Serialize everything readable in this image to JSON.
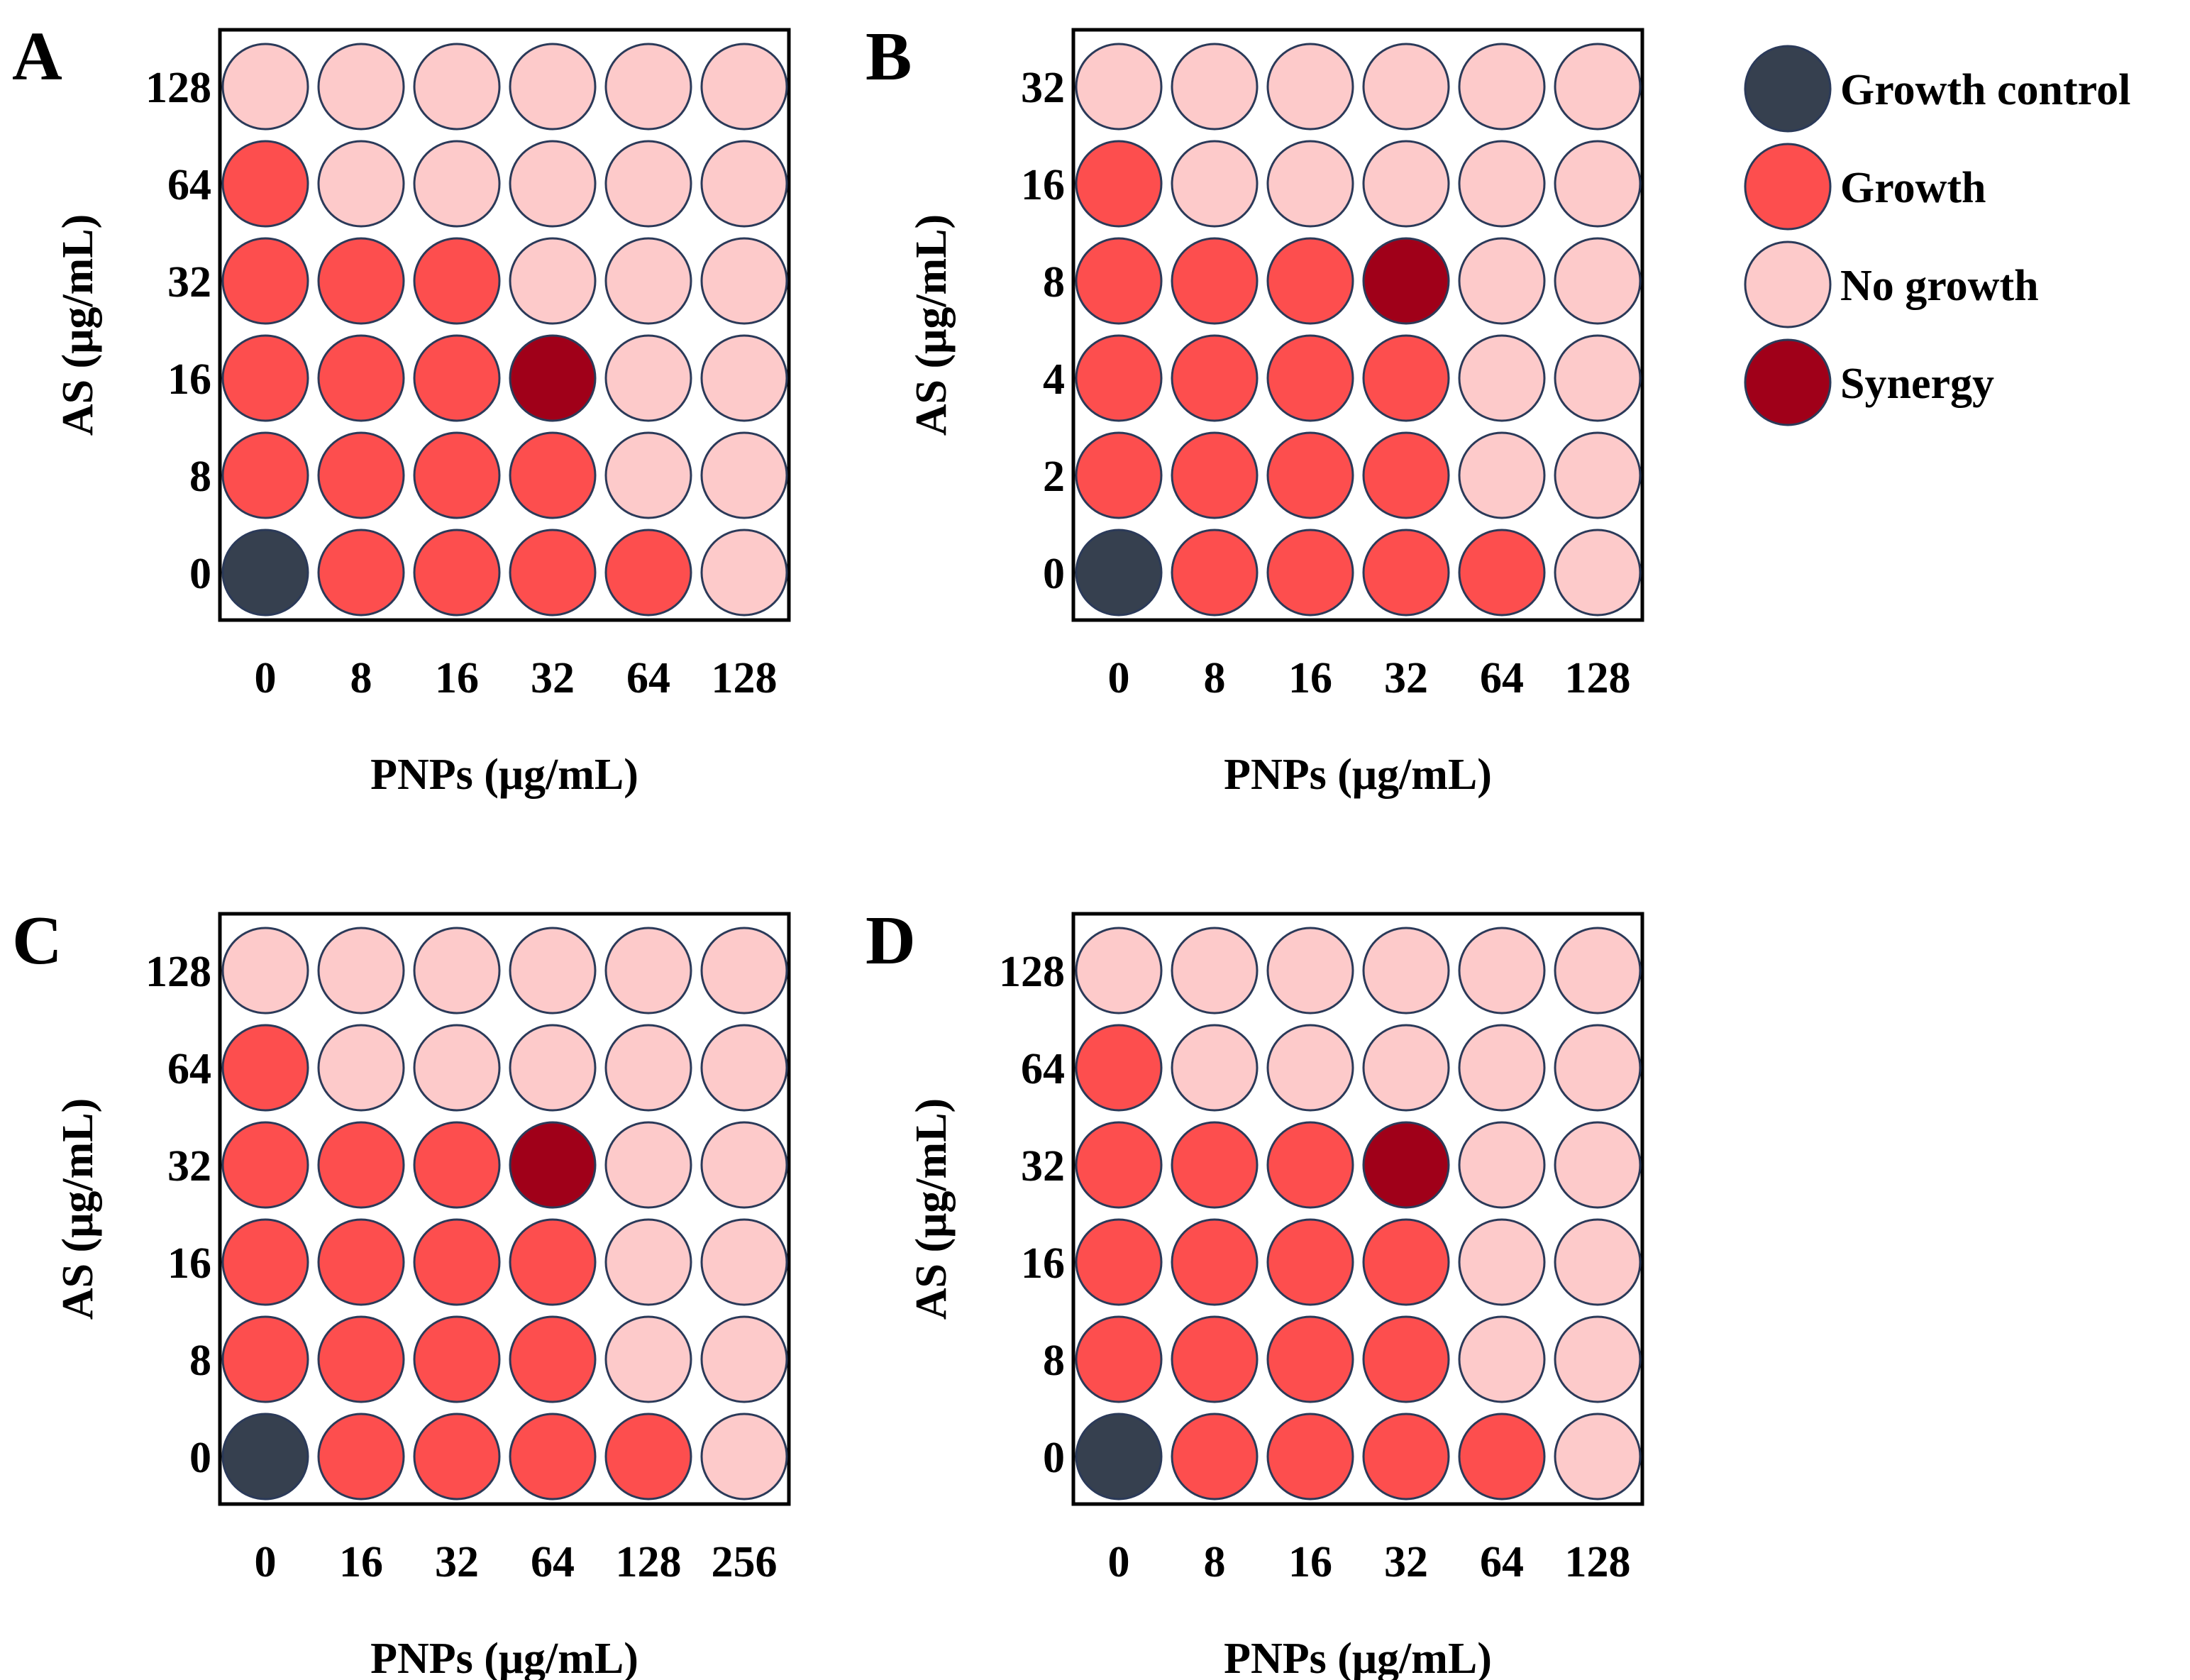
{
  "colors": {
    "growth_control": "#36404f",
    "growth": "#fd4e4e",
    "no_growth": "#fdcaca",
    "synergy": "#a00019",
    "well_outline": "#2b3a59"
  },
  "legend": [
    {
      "key": "growth_control",
      "label": "Growth control"
    },
    {
      "key": "growth",
      "label": "Growth"
    },
    {
      "key": "no_growth",
      "label": "No growth"
    },
    {
      "key": "synergy",
      "label": "Synergy"
    }
  ],
  "chart_data": [
    {
      "type": "heatmap",
      "panel": "A",
      "xlabel": "PNPs (μg/mL)",
      "ylabel": "AS (μg/mL)",
      "x_ticks": [
        "0",
        "8",
        "16",
        "32",
        "64",
        "128"
      ],
      "y_ticks_top_to_bottom": [
        "128",
        "64",
        "32",
        "16",
        "8",
        "0"
      ],
      "grid_top_to_bottom": [
        [
          "N",
          "N",
          "N",
          "N",
          "N",
          "N"
        ],
        [
          "G",
          "N",
          "N",
          "N",
          "N",
          "N"
        ],
        [
          "G",
          "G",
          "G",
          "N",
          "N",
          "N"
        ],
        [
          "G",
          "G",
          "G",
          "S",
          "N",
          "N"
        ],
        [
          "G",
          "G",
          "G",
          "G",
          "N",
          "N"
        ],
        [
          "C",
          "G",
          "G",
          "G",
          "G",
          "N"
        ]
      ]
    },
    {
      "type": "heatmap",
      "panel": "B",
      "xlabel": "PNPs (μg/mL)",
      "ylabel": "AS (μg/mL)",
      "x_ticks": [
        "0",
        "8",
        "16",
        "32",
        "64",
        "128"
      ],
      "y_ticks_top_to_bottom": [
        "32",
        "16",
        "8",
        "4",
        "2",
        "0"
      ],
      "grid_top_to_bottom": [
        [
          "N",
          "N",
          "N",
          "N",
          "N",
          "N"
        ],
        [
          "G",
          "N",
          "N",
          "N",
          "N",
          "N"
        ],
        [
          "G",
          "G",
          "G",
          "S",
          "N",
          "N"
        ],
        [
          "G",
          "G",
          "G",
          "G",
          "N",
          "N"
        ],
        [
          "G",
          "G",
          "G",
          "G",
          "N",
          "N"
        ],
        [
          "C",
          "G",
          "G",
          "G",
          "G",
          "N"
        ]
      ]
    },
    {
      "type": "heatmap",
      "panel": "C",
      "xlabel": "PNPs (μg/mL)",
      "ylabel": "AS (μg/mL)",
      "x_ticks": [
        "0",
        "16",
        "32",
        "64",
        "128",
        "256"
      ],
      "y_ticks_top_to_bottom": [
        "128",
        "64",
        "32",
        "16",
        "8",
        "0"
      ],
      "grid_top_to_bottom": [
        [
          "N",
          "N",
          "N",
          "N",
          "N",
          "N"
        ],
        [
          "G",
          "N",
          "N",
          "N",
          "N",
          "N"
        ],
        [
          "G",
          "G",
          "G",
          "S",
          "N",
          "N"
        ],
        [
          "G",
          "G",
          "G",
          "G",
          "N",
          "N"
        ],
        [
          "G",
          "G",
          "G",
          "G",
          "N",
          "N"
        ],
        [
          "C",
          "G",
          "G",
          "G",
          "G",
          "N"
        ]
      ]
    },
    {
      "type": "heatmap",
      "panel": "D",
      "xlabel": "PNPs (μg/mL)",
      "ylabel": "AS (μg/mL)",
      "x_ticks": [
        "0",
        "8",
        "16",
        "32",
        "64",
        "128"
      ],
      "y_ticks_top_to_bottom": [
        "128",
        "64",
        "32",
        "16",
        "8",
        "0"
      ],
      "grid_top_to_bottom": [
        [
          "N",
          "N",
          "N",
          "N",
          "N",
          "N"
        ],
        [
          "G",
          "N",
          "N",
          "N",
          "N",
          "N"
        ],
        [
          "G",
          "G",
          "G",
          "S",
          "N",
          "N"
        ],
        [
          "G",
          "G",
          "G",
          "G",
          "N",
          "N"
        ],
        [
          "G",
          "G",
          "G",
          "G",
          "N",
          "N"
        ],
        [
          "C",
          "G",
          "G",
          "G",
          "G",
          "N"
        ]
      ]
    }
  ]
}
